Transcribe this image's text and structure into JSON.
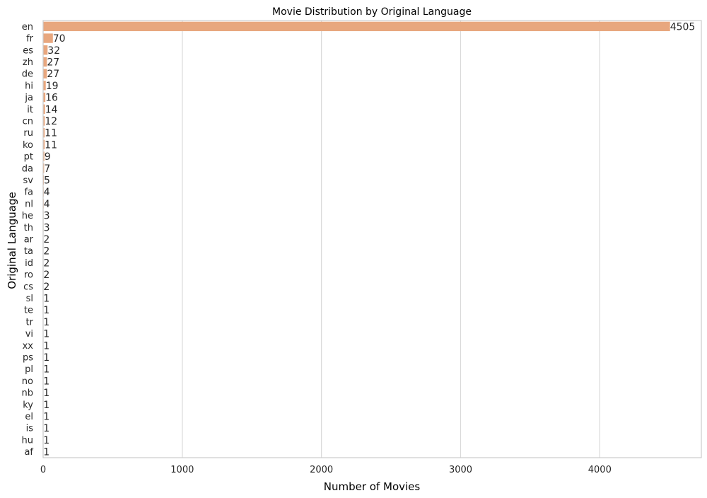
{
  "chart_data": {
    "type": "bar",
    "orientation": "horizontal",
    "title": "Movie Distribution by Original Language",
    "xlabel": "Number of Movies",
    "ylabel": "Original Language",
    "xlim": [
      0,
      4730
    ],
    "xticks": [
      0,
      1000,
      2000,
      3000,
      4000
    ],
    "grid": true,
    "bar_color": "#E8A77E",
    "categories": [
      "en",
      "fr",
      "es",
      "zh",
      "de",
      "hi",
      "ja",
      "it",
      "cn",
      "ru",
      "ko",
      "pt",
      "da",
      "sv",
      "fa",
      "nl",
      "he",
      "th",
      "ar",
      "ta",
      "id",
      "ro",
      "cs",
      "sl",
      "te",
      "tr",
      "vi",
      "xx",
      "ps",
      "pl",
      "no",
      "nb",
      "ky",
      "el",
      "is",
      "hu",
      "af"
    ],
    "values": [
      4505,
      70,
      32,
      27,
      27,
      19,
      16,
      14,
      12,
      11,
      11,
      9,
      7,
      5,
      4,
      4,
      3,
      3,
      2,
      2,
      2,
      2,
      2,
      1,
      1,
      1,
      1,
      1,
      1,
      1,
      1,
      1,
      1,
      1,
      1,
      1,
      1
    ]
  }
}
